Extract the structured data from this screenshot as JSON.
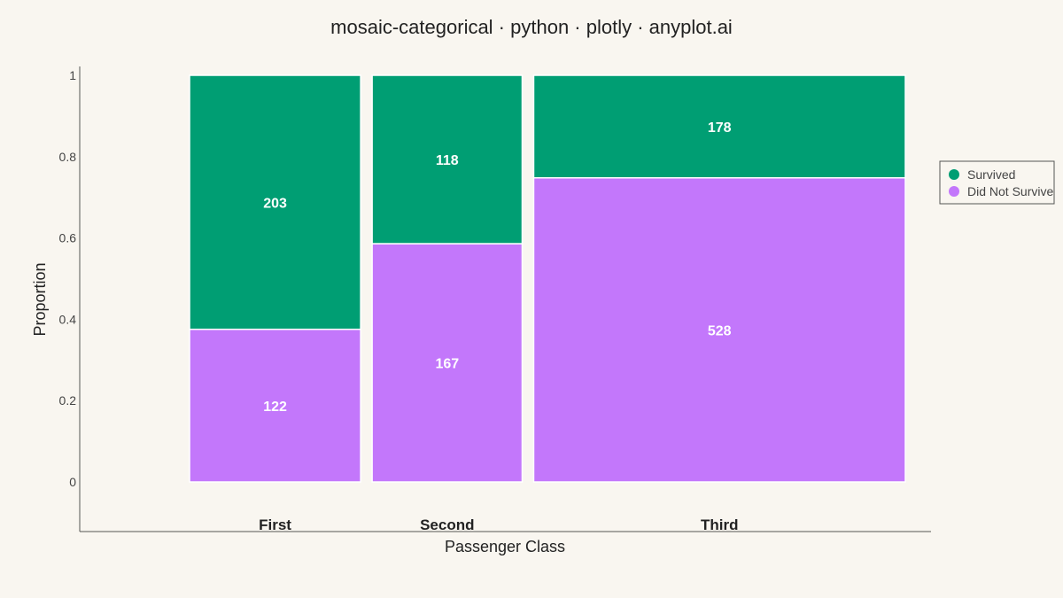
{
  "chart_data": {
    "type": "mosaic",
    "title": "mosaic-categorical · python · plotly · anyplot.ai",
    "xlabel": "Passenger Class",
    "ylabel": "Proportion",
    "ylim": [
      0,
      1
    ],
    "yticks": [
      "0",
      "0.2",
      "0.4",
      "0.6",
      "0.8",
      "1"
    ],
    "categories": [
      "First",
      "Second",
      "Third"
    ],
    "series": [
      {
        "name": "Did Not Survive",
        "color": "#c377fb",
        "values": [
          122,
          167,
          528
        ]
      },
      {
        "name": "Survived",
        "color": "#009e73",
        "values": [
          203,
          118,
          178
        ]
      }
    ],
    "legend_order": [
      "Survived",
      "Did Not Survive"
    ],
    "legend_position": "right",
    "grid": false
  }
}
